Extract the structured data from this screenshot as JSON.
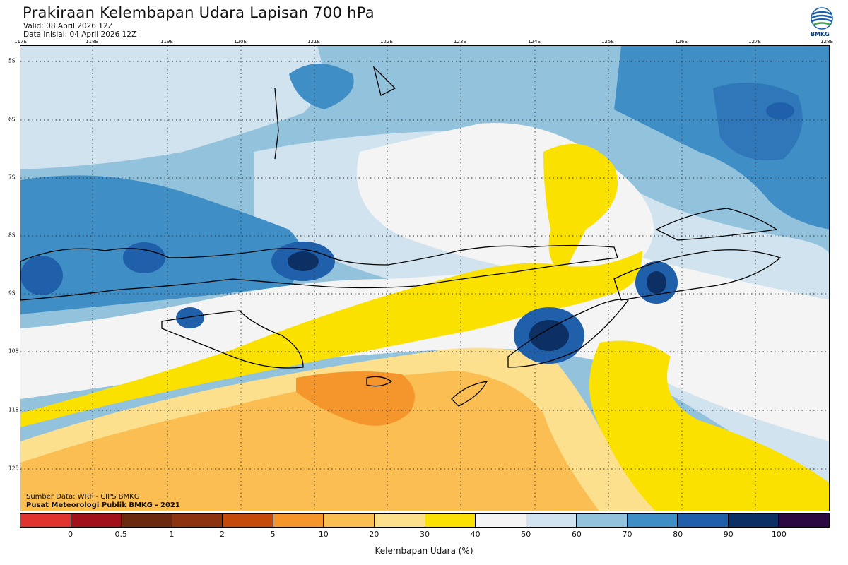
{
  "header": {
    "title": "Prakiraan Kelembapan Udara Lapisan 700 hPa",
    "valid": "Valid: 08 April 2026 12Z",
    "initial": "Data inisial: 04 April 2026 12Z",
    "logo_text": "BMKG"
  },
  "map": {
    "lon_labels": [
      "117E",
      "118E",
      "119E",
      "120E",
      "121E",
      "122E",
      "123E",
      "124E",
      "125E",
      "126E",
      "127E",
      "128E"
    ],
    "lat_labels": [
      "5S",
      "6S",
      "7S",
      "8S",
      "9S",
      "10S",
      "11S",
      "12S"
    ],
    "source_line": "Sumber Data: WRF - CIPS BMKG",
    "producer_line": "Pusat Meteorologi Publik BMKG - 2021"
  },
  "colorbar": {
    "title": "Kelembapan Udara (%)",
    "ticks": [
      "0",
      "0.5",
      "1",
      "2",
      "5",
      "10",
      "20",
      "30",
      "40",
      "50",
      "60",
      "70",
      "80",
      "90",
      "100"
    ],
    "colors": [
      "#e0342e",
      "#a1111a",
      "#6b2a0f",
      "#8c3410",
      "#c44a0b",
      "#f5962c",
      "#fbbe52",
      "#fde08e",
      "#fbe100",
      "#f4f4f4",
      "#d0e3ef",
      "#93c2dd",
      "#3f8ec5",
      "#2060ab",
      "#0c2f64",
      "#2a0842"
    ]
  },
  "palette": {
    "border": "#000000",
    "grid": "#333333"
  }
}
